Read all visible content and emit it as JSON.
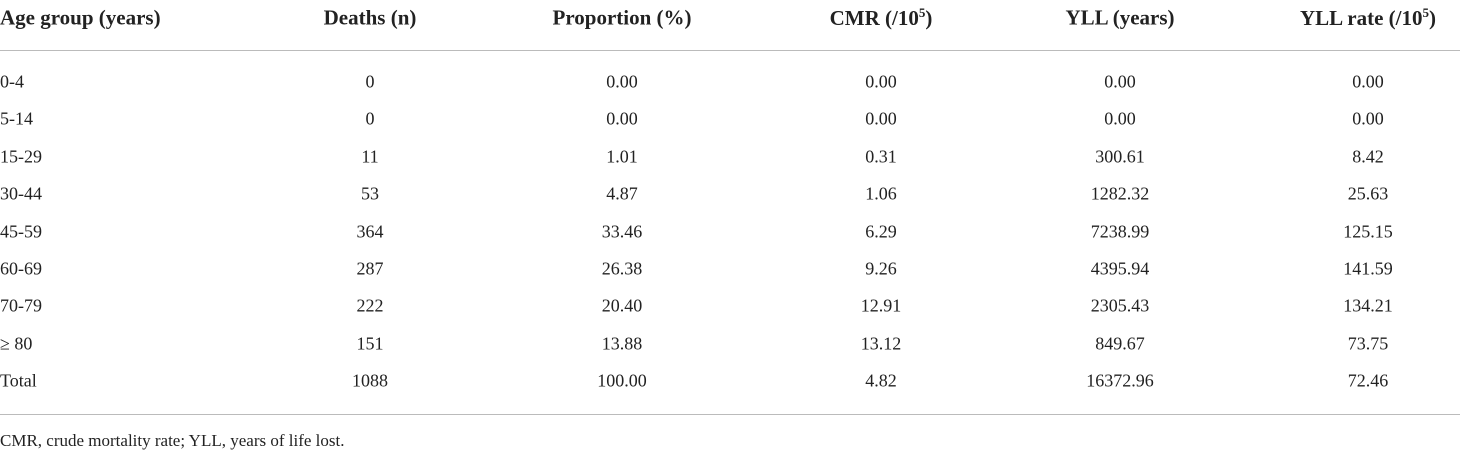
{
  "table": {
    "header": [
      {
        "text": "Age group (years)"
      },
      {
        "text": "Deaths (n)"
      },
      {
        "text": "Proportion (%)"
      },
      {
        "text": "CMR (/10",
        "sup": "5",
        "tail": ")"
      },
      {
        "text": "YLL (years)"
      },
      {
        "text": "YLL rate (/10",
        "sup": "5",
        "tail": ")"
      }
    ],
    "rows": [
      [
        "0-4",
        "0",
        "0.00",
        "0.00",
        "0.00",
        "0.00"
      ],
      [
        "5-14",
        "0",
        "0.00",
        "0.00",
        "0.00",
        "0.00"
      ],
      [
        "15-29",
        "11",
        "1.01",
        "0.31",
        "300.61",
        "8.42"
      ],
      [
        "30-44",
        "53",
        "4.87",
        "1.06",
        "1282.32",
        "25.63"
      ],
      [
        "45-59",
        "364",
        "33.46",
        "6.29",
        "7238.99",
        "125.15"
      ],
      [
        "60-69",
        "287",
        "26.38",
        "9.26",
        "4395.94",
        "141.59"
      ],
      [
        "70-79",
        "222",
        "20.40",
        "12.91",
        "2305.43",
        "134.21"
      ],
      [
        "≥ 80",
        "151",
        "13.88",
        "13.12",
        "849.67",
        "73.75"
      ],
      [
        "Total",
        "1088",
        "100.00",
        "4.82",
        "16372.96",
        "72.46"
      ]
    ],
    "footnote": "CMR, crude mortality rate; YLL, years of life lost."
  }
}
